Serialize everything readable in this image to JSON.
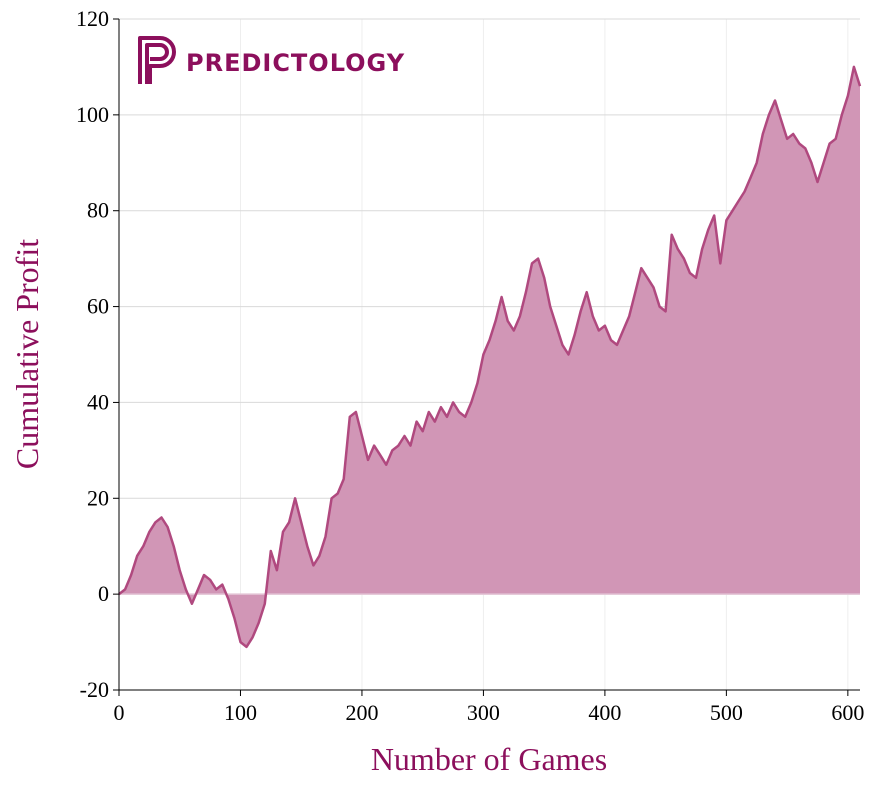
{
  "colors": {
    "accent": "#8c0f5c",
    "line": "#b0497f",
    "fill": "#d196b6",
    "grid": "#d9d9d9",
    "grid_light": "#eeeeee",
    "zero_line": "#e3c4d5"
  },
  "logo": {
    "text": "PREDICTOLOGY",
    "icon": "predictology-p-logo-icon"
  },
  "chart_data": {
    "type": "area",
    "xlabel": "Number of Games",
    "ylabel": "Cumulative Profit",
    "xlim": [
      0,
      610
    ],
    "ylim": [
      -20,
      120
    ],
    "xticks": [
      0,
      100,
      200,
      300,
      400,
      500,
      600
    ],
    "yticks": [
      -20,
      0,
      20,
      40,
      60,
      80,
      100,
      120
    ],
    "grid": true,
    "x": [
      0,
      5,
      10,
      15,
      20,
      25,
      30,
      35,
      40,
      45,
      50,
      55,
      60,
      65,
      70,
      75,
      80,
      85,
      90,
      95,
      100,
      105,
      110,
      115,
      120,
      125,
      130,
      135,
      140,
      145,
      150,
      155,
      160,
      165,
      170,
      175,
      180,
      185,
      190,
      195,
      200,
      205,
      210,
      215,
      220,
      225,
      230,
      235,
      240,
      245,
      250,
      255,
      260,
      265,
      270,
      275,
      280,
      285,
      290,
      295,
      300,
      305,
      310,
      315,
      320,
      325,
      330,
      335,
      340,
      345,
      350,
      355,
      360,
      365,
      370,
      375,
      380,
      385,
      390,
      395,
      400,
      405,
      410,
      415,
      420,
      425,
      430,
      435,
      440,
      445,
      450,
      455,
      460,
      465,
      470,
      475,
      480,
      485,
      490,
      495,
      500,
      505,
      510,
      515,
      520,
      525,
      530,
      535,
      540,
      545,
      550,
      555,
      560,
      565,
      570,
      575,
      580,
      585,
      590,
      595,
      600,
      605,
      610
    ],
    "y": [
      0,
      1,
      4,
      8,
      10,
      13,
      15,
      16,
      14,
      10,
      5,
      1,
      -2,
      1,
      4,
      3,
      1,
      2,
      -1,
      -5,
      -10,
      -11,
      -9,
      -6,
      -2,
      9,
      5,
      13,
      15,
      20,
      15,
      10,
      6,
      8,
      12,
      20,
      21,
      24,
      37,
      38,
      33,
      28,
      31,
      29,
      27,
      30,
      31,
      33,
      31,
      36,
      34,
      38,
      36,
      39,
      37,
      40,
      38,
      37,
      40,
      44,
      50,
      53,
      57,
      62,
      57,
      55,
      58,
      63,
      69,
      70,
      66,
      60,
      56,
      52,
      50,
      54,
      59,
      63,
      58,
      55,
      56,
      53,
      52,
      55,
      58,
      63,
      68,
      66,
      64,
      60,
      59,
      75,
      72,
      70,
      67,
      66,
      72,
      76,
      79,
      69,
      78,
      80,
      82,
      84,
      87,
      90,
      96,
      100,
      103,
      99,
      95,
      96,
      94,
      93,
      90,
      86,
      90,
      94,
      95,
      100,
      104,
      110,
      106
    ]
  }
}
